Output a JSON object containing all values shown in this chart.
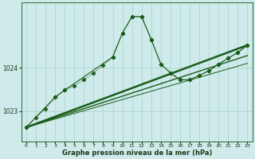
{
  "xlabel": "Graphe pression niveau de la mer (hPa)",
  "background_color": "#ceeaea",
  "grid_color": "#b0d4d4",
  "line_color": "#1a5c1a",
  "xlim": [
    -0.5,
    23.5
  ],
  "ylim": [
    1022.3,
    1025.5
  ],
  "yticks": [
    1023,
    1024
  ],
  "xticks": [
    0,
    1,
    2,
    3,
    4,
    5,
    6,
    7,
    8,
    9,
    10,
    11,
    12,
    13,
    14,
    15,
    16,
    17,
    18,
    19,
    20,
    21,
    22,
    23
  ],
  "series": [
    {
      "x": [
        0,
        1,
        2,
        3,
        4,
        5,
        6,
        7,
        8,
        9,
        10,
        11,
        12,
        13,
        14,
        15,
        16,
        17,
        18,
        19,
        20,
        21,
        22,
        23
      ],
      "y": [
        1022.62,
        1022.85,
        1023.05,
        1023.32,
        1023.48,
        1023.58,
        1023.72,
        1023.88,
        1024.05,
        1024.25,
        1024.8,
        1025.18,
        1025.18,
        1024.65,
        1024.08,
        1023.88,
        1023.72,
        1023.72,
        1023.82,
        1023.93,
        1024.08,
        1024.22,
        1024.35,
        1024.52
      ],
      "linestyle": "dotted",
      "marker": "D",
      "markersize": 2.5,
      "linewidth": 0.8
    },
    {
      "x": [
        0,
        3,
        4,
        9,
        10,
        11,
        12,
        13,
        14,
        15,
        16,
        17,
        18,
        19,
        20,
        21,
        22,
        23
      ],
      "y": [
        1022.62,
        1023.32,
        1023.48,
        1024.25,
        1024.8,
        1025.18,
        1025.18,
        1024.65,
        1024.08,
        1023.88,
        1023.72,
        1023.72,
        1023.82,
        1023.93,
        1024.08,
        1024.22,
        1024.35,
        1024.52
      ],
      "linestyle": "solid",
      "marker": "P",
      "markersize": 3,
      "linewidth": 0.8
    },
    {
      "x": [
        0,
        23
      ],
      "y": [
        1022.62,
        1024.52
      ],
      "linestyle": "solid",
      "marker": null,
      "markersize": 0,
      "linewidth": 1.8
    },
    {
      "x": [
        0,
        23
      ],
      "y": [
        1022.62,
        1024.28
      ],
      "linestyle": "solid",
      "marker": null,
      "markersize": 0,
      "linewidth": 1.0
    },
    {
      "x": [
        0,
        23
      ],
      "y": [
        1022.62,
        1024.1
      ],
      "linestyle": "solid",
      "marker": null,
      "markersize": 0,
      "linewidth": 0.7
    }
  ]
}
